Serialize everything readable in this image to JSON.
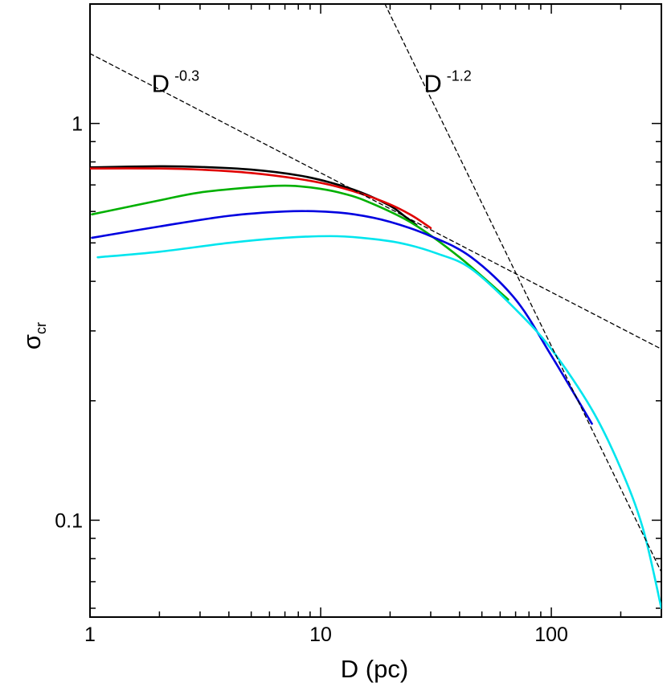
{
  "chart_data": {
    "type": "line",
    "xscale": "log",
    "yscale": "log",
    "xlim": [
      1,
      300
    ],
    "ylim": [
      0.057,
      2.0
    ],
    "xlabel": "D (pc)",
    "ylabel": "σ",
    "ylabel_sub": "cr",
    "xticks": [
      {
        "value": 1,
        "label": "1"
      },
      {
        "value": 10,
        "label": "10"
      },
      {
        "value": 100,
        "label": "100"
      }
    ],
    "yticks": [
      {
        "value": 0.1,
        "label": "0.1"
      },
      {
        "value": 1,
        "label": "1"
      }
    ],
    "grid": false,
    "series": [
      {
        "color": "#000000",
        "points": [
          [
            1,
            0.775
          ],
          [
            2,
            0.78
          ],
          [
            3,
            0.777
          ],
          [
            5,
            0.765
          ],
          [
            8,
            0.74
          ],
          [
            11,
            0.71
          ],
          [
            15,
            0.67
          ],
          [
            20,
            0.62
          ],
          [
            23,
            0.585
          ],
          [
            26,
            0.555
          ]
        ]
      },
      {
        "color": "#e00000",
        "points": [
          [
            1,
            0.77
          ],
          [
            2,
            0.77
          ],
          [
            3,
            0.765
          ],
          [
            5,
            0.75
          ],
          [
            8,
            0.725
          ],
          [
            11,
            0.7
          ],
          [
            15,
            0.665
          ],
          [
            20,
            0.625
          ],
          [
            25,
            0.585
          ],
          [
            30,
            0.545
          ]
        ]
      },
      {
        "color": "#00b000",
        "points": [
          [
            1.02,
            0.59
          ],
          [
            2,
            0.64
          ],
          [
            3,
            0.67
          ],
          [
            5,
            0.69
          ],
          [
            7,
            0.697
          ],
          [
            9,
            0.69
          ],
          [
            12,
            0.67
          ],
          [
            16,
            0.635
          ],
          [
            25,
            0.56
          ],
          [
            40,
            0.46
          ],
          [
            65,
            0.36
          ]
        ]
      },
      {
        "color": "#0000e0",
        "points": [
          [
            1.02,
            0.515
          ],
          [
            2,
            0.55
          ],
          [
            4,
            0.585
          ],
          [
            7,
            0.6
          ],
          [
            10,
            0.6
          ],
          [
            14,
            0.59
          ],
          [
            20,
            0.565
          ],
          [
            30,
            0.52
          ],
          [
            45,
            0.46
          ],
          [
            70,
            0.36
          ],
          [
            100,
            0.26
          ],
          [
            150,
            0.175
          ]
        ]
      },
      {
        "color": "#00e5ee",
        "points": [
          [
            1.08,
            0.46
          ],
          [
            2,
            0.475
          ],
          [
            4,
            0.5
          ],
          [
            7,
            0.515
          ],
          [
            11,
            0.52
          ],
          [
            15,
            0.515
          ],
          [
            22,
            0.5
          ],
          [
            32,
            0.47
          ],
          [
            45,
            0.43
          ],
          [
            70,
            0.34
          ],
          [
            100,
            0.27
          ],
          [
            150,
            0.19
          ],
          [
            200,
            0.135
          ],
          [
            250,
            0.095
          ],
          [
            300,
            0.06
          ]
        ]
      },
      {
        "color": "#000000",
        "dashed": true,
        "exponent": -0.3,
        "points": [
          [
            1,
            1.5
          ],
          [
            300,
            0.27
          ]
        ]
      },
      {
        "color": "#000000",
        "dashed": true,
        "exponent": -1.2,
        "points": [
          [
            19,
            2.0
          ],
          [
            300,
            0.074
          ]
        ]
      }
    ],
    "annotations": [
      {
        "base": "D",
        "sup": "-0.3",
        "x": 1.85,
        "y": 1.2
      },
      {
        "base": "D",
        "sup": "-1.2",
        "x": 28,
        "y": 1.2
      }
    ]
  }
}
